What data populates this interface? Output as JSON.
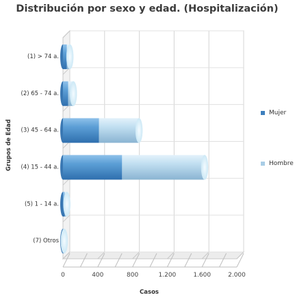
{
  "chart_data": {
    "type": "bar",
    "orientation": "horizontal",
    "stacked": true,
    "title": "Distribución por sexo y edad. (Hospitalización)",
    "xlabel": "Casos",
    "ylabel": "Grupos de Edad",
    "xlim": [
      0,
      2000
    ],
    "xticks": [
      0,
      400,
      800,
      1200,
      1600,
      2000
    ],
    "xtick_labels": [
      "0",
      "400",
      "800",
      "1.200",
      "1.600",
      "2.000"
    ],
    "grid": true,
    "legend_position": "right",
    "categories": [
      "(1) > 74 a.",
      "(2) 65 - 74 a.",
      "(3) 45 - 64 a.",
      "(4) 15 - 44 a.",
      "(5) 1 - 14 a.",
      "(7) Otros"
    ],
    "series": [
      {
        "name": "Mujer",
        "color": "#4a8fc8",
        "values": [
          45,
          60,
          415,
          680,
          20,
          5
        ]
      },
      {
        "name": "Hombre",
        "color": "#a9cde6",
        "values": [
          35,
          60,
          460,
          950,
          25,
          10
        ]
      }
    ]
  }
}
